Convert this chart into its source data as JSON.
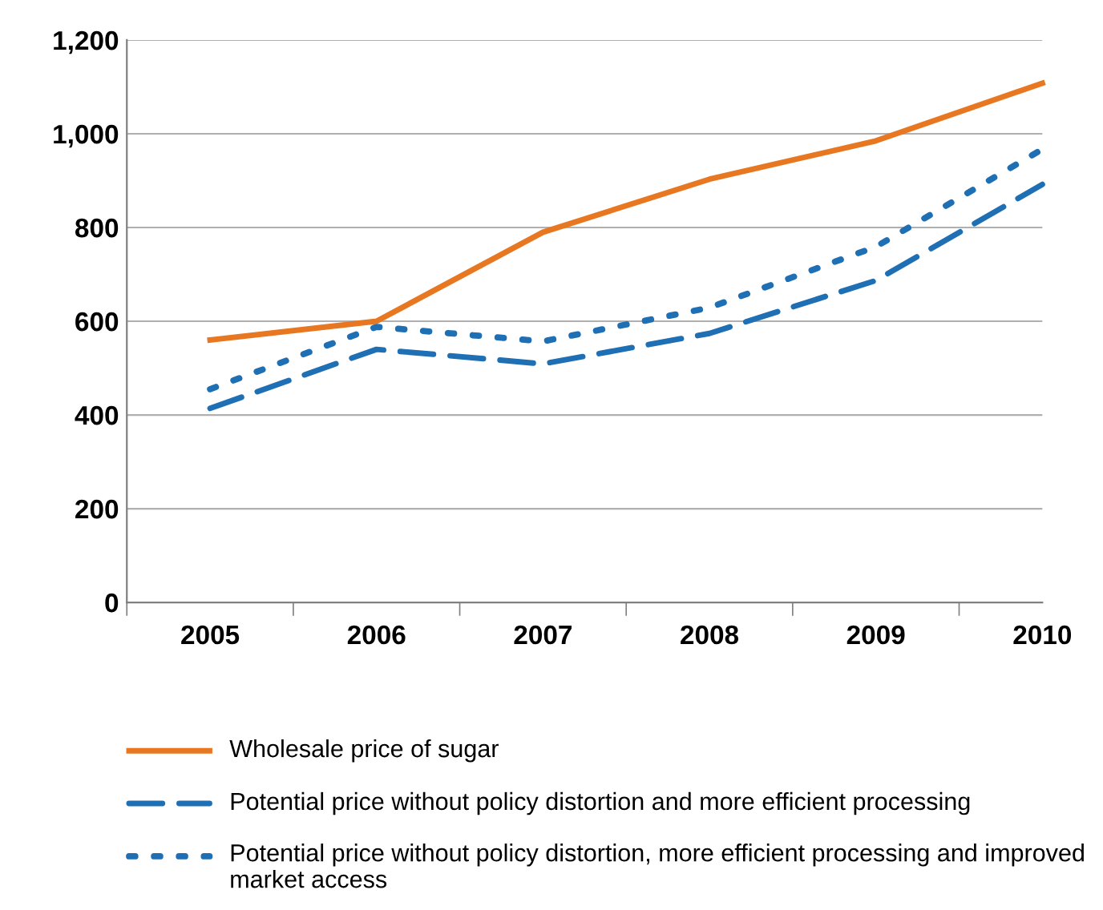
{
  "chart_data": {
    "type": "line",
    "categories": [
      "2005",
      "2006",
      "2007",
      "2008",
      "2009",
      "2010"
    ],
    "series": [
      {
        "name": "Wholesale price of sugar",
        "color": "#e87722",
        "line_style": "solid",
        "values": [
          560,
          600,
          790,
          903,
          985,
          1108
        ]
      },
      {
        "name": "Potential price without policy distortion and more efficient processing",
        "color": "#1f6fb5",
        "line_style": "dashed",
        "values": [
          414,
          540,
          509,
          574,
          687,
          892
        ]
      },
      {
        "name": "Potential price without policy distortion, more efficient processing and improved market access",
        "color": "#1f6fb5",
        "line_style": "dotted",
        "values": [
          455,
          588,
          557,
          629,
          759,
          967
        ]
      }
    ],
    "ylim": [
      0,
      1200
    ],
    "yticks": [
      {
        "value": 0,
        "label": "0"
      },
      {
        "value": 200,
        "label": "200"
      },
      {
        "value": 400,
        "label": "400"
      },
      {
        "value": 600,
        "label": "600"
      },
      {
        "value": 800,
        "label": "800"
      },
      {
        "value": 1000,
        "label": "1,000"
      },
      {
        "value": 1200,
        "label": "1,200"
      }
    ],
    "grid": "y",
    "legend": "bottom",
    "marker": "none"
  }
}
